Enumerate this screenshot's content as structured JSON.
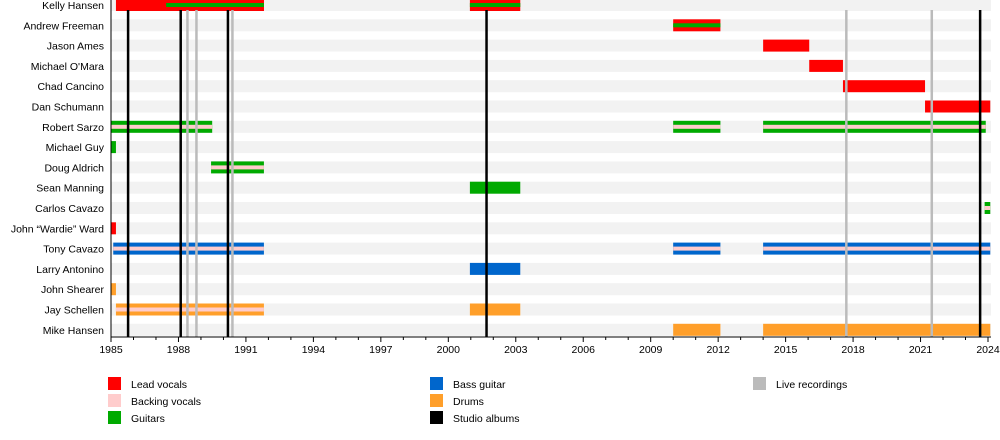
{
  "chart_data": {
    "type": "timeline",
    "xlim": [
      1985,
      2024
    ],
    "tick_labels": [
      "1985",
      "1988",
      "1991",
      "1994",
      "1997",
      "2000",
      "2003",
      "2006",
      "2009",
      "2012",
      "2015",
      "2018",
      "2021",
      "2024"
    ],
    "colors": {
      "vocals": "#ff0000",
      "backing": "#ffcccc",
      "guitar": "#00aa00",
      "bass": "#0066cc",
      "drums": "#ff9f2a",
      "studio": "#000000",
      "live": "#bbbbbb"
    },
    "members": [
      {
        "name": "Kelly Hansen",
        "periods": [
          {
            "start": 1985.22,
            "end": 1991.8,
            "roles": [
              "vocals"
            ]
          },
          {
            "start": 1987.45,
            "end": 1991.8,
            "roles": [
              "vocals",
              "guitar"
            ]
          },
          {
            "start": 2000.96,
            "end": 2003.2,
            "roles": [
              "vocals",
              "guitar"
            ]
          }
        ]
      },
      {
        "name": "Andrew Freeman",
        "periods": [
          {
            "start": 2010.0,
            "end": 2012.1,
            "roles": [
              "vocals",
              "guitar"
            ]
          }
        ]
      },
      {
        "name": "Jason Ames",
        "periods": [
          {
            "start": 2014.0,
            "end": 2016.05,
            "roles": [
              "vocals"
            ]
          }
        ]
      },
      {
        "name": "Michael O'Mara",
        "periods": [
          {
            "start": 2016.05,
            "end": 2017.55,
            "roles": [
              "vocals"
            ]
          }
        ]
      },
      {
        "name": "Chad Cancino",
        "periods": [
          {
            "start": 2017.55,
            "end": 2021.2,
            "roles": [
              "vocals"
            ]
          }
        ]
      },
      {
        "name": "Dan Schumann",
        "periods": [
          {
            "start": 2021.2,
            "end": 2024.1,
            "roles": [
              "vocals"
            ]
          }
        ]
      },
      {
        "name": "Robert Sarzo",
        "periods": [
          {
            "start": 1985.0,
            "end": 1989.5,
            "roles": [
              "guitar",
              "backing"
            ]
          },
          {
            "start": 2010.0,
            "end": 2012.1,
            "roles": [
              "guitar",
              "backing"
            ]
          },
          {
            "start": 2014.0,
            "end": 2023.9,
            "roles": [
              "guitar",
              "backing"
            ]
          }
        ]
      },
      {
        "name": "Michael Guy",
        "periods": [
          {
            "start": 1985.0,
            "end": 1985.22,
            "roles": [
              "guitar"
            ]
          }
        ]
      },
      {
        "name": "Doug Aldrich",
        "periods": [
          {
            "start": 1989.45,
            "end": 1991.8,
            "roles": [
              "guitar",
              "backing"
            ]
          }
        ]
      },
      {
        "name": "Sean Manning",
        "periods": [
          {
            "start": 2000.96,
            "end": 2003.2,
            "roles": [
              "guitar"
            ]
          }
        ]
      },
      {
        "name": "Carlos Cavazo",
        "periods": [
          {
            "start": 2023.85,
            "end": 2024.1,
            "roles": [
              "guitar",
              "backing"
            ]
          }
        ]
      },
      {
        "name": "John “Wardie” Ward",
        "periods": [
          {
            "start": 1985.0,
            "end": 1985.22,
            "roles": [
              "vocals"
            ]
          }
        ]
      },
      {
        "name": "Tony Cavazo",
        "periods": [
          {
            "start": 1985.1,
            "end": 1991.8,
            "roles": [
              "bass",
              "backing"
            ]
          },
          {
            "start": 2010.0,
            "end": 2012.1,
            "roles": [
              "bass",
              "backing"
            ]
          },
          {
            "start": 2014.0,
            "end": 2024.1,
            "roles": [
              "bass",
              "backing"
            ]
          }
        ]
      },
      {
        "name": "Larry Antonino",
        "periods": [
          {
            "start": 2000.96,
            "end": 2003.2,
            "roles": [
              "bass"
            ]
          }
        ]
      },
      {
        "name": "John Shearer",
        "periods": [
          {
            "start": 1985.0,
            "end": 1985.22,
            "roles": [
              "drums"
            ]
          }
        ]
      },
      {
        "name": "Jay Schellen",
        "periods": [
          {
            "start": 1985.22,
            "end": 1991.8,
            "roles": [
              "drums",
              "backing"
            ]
          },
          {
            "start": 2000.96,
            "end": 2003.2,
            "roles": [
              "drums"
            ]
          }
        ]
      },
      {
        "name": "Mike Hansen",
        "periods": [
          {
            "start": 2010.0,
            "end": 2012.1,
            "roles": [
              "drums"
            ]
          },
          {
            "start": 2014.0,
            "end": 2024.1,
            "roles": [
              "drums"
            ]
          }
        ]
      }
    ],
    "studio_albums": [
      1985.76,
      1988.1,
      1990.2,
      2001.7,
      2023.65
    ],
    "live_recordings": [
      1988.4,
      1988.8,
      1990.4,
      2017.7,
      2021.5
    ],
    "legend": [
      {
        "key": "vocals",
        "label": "Lead vocals"
      },
      {
        "key": "backing",
        "label": "Backing vocals"
      },
      {
        "key": "guitar",
        "label": "Guitars"
      },
      {
        "key": "bass",
        "label": "Bass guitar"
      },
      {
        "key": "drums",
        "label": "Drums"
      },
      {
        "key": "studio",
        "label": "Studio albums"
      },
      {
        "key": "live",
        "label": "Live recordings"
      }
    ]
  }
}
